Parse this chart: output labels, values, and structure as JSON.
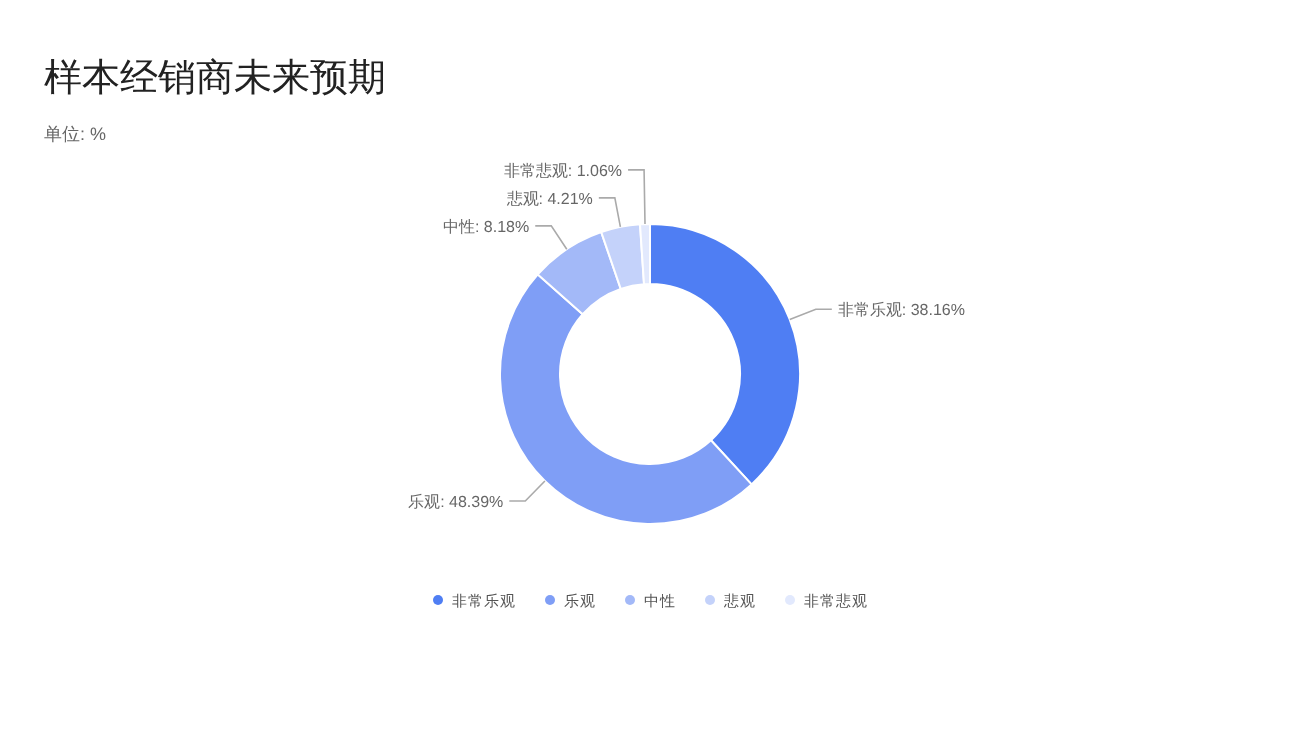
{
  "chart_data": {
    "type": "donut",
    "title": "样本经销商未来预期",
    "subtitle": "单位: %",
    "categories": [
      "非常乐观",
      "乐观",
      "中性",
      "悲观",
      "非常悲观"
    ],
    "values": [
      38.16,
      48.39,
      8.18,
      4.21,
      1.06
    ],
    "colors": [
      "#4f7ef3",
      "#7f9ef6",
      "#a3b9f8",
      "#c4d2fa",
      "#e2e9fd"
    ],
    "value_labels": [
      "非常乐观: 38.16%",
      "乐观: 48.39%",
      "中性: 8.18%",
      "悲观: 4.21%",
      "非常悲观: 1.06%"
    ],
    "legend": "bottom"
  }
}
